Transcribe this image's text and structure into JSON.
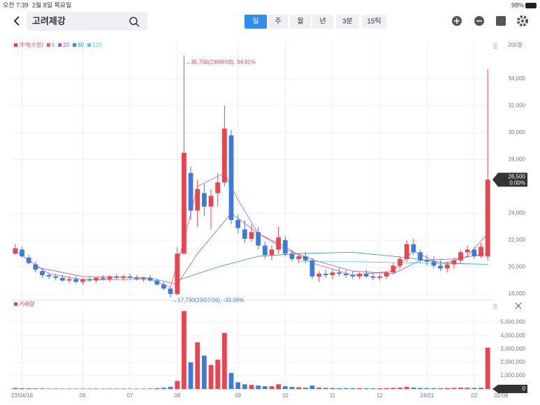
{
  "status_bar": {
    "time": "오전 7:39",
    "date": "2월 8일 목요일",
    "battery": "98%"
  },
  "toolbar": {
    "search": "고려제강",
    "periods": [
      "일",
      "주",
      "월",
      "년",
      "3분",
      "15틱"
    ]
  },
  "chart_data": [
    {
      "type": "candlestick",
      "legend": [
        "가격(수정)",
        "5",
        "20",
        "60",
        "120"
      ],
      "count_label": "200봉",
      "max_label": "→35,750(23/08/03), 34.91%",
      "min_label": "→17,730(23/07/26), -33.09%",
      "last_price_label": "26,500",
      "last_change": "0.00%",
      "up_color": "#e8454f",
      "down_color": "#3c7bd8",
      "ylim": [
        17530,
        36750
      ],
      "yticks": [
        {
          "value": 18000,
          "label": "18,000"
        },
        {
          "value": 20000,
          "label": "20,000"
        },
        {
          "value": 22000,
          "label": "22,000"
        },
        {
          "value": 24000,
          "label": "24,000"
        },
        {
          "value": 28000,
          "label": "28,000"
        },
        {
          "value": 30000,
          "label": "30,000"
        },
        {
          "value": 32000,
          "label": "32,000"
        },
        {
          "value": 34000,
          "label": "34,000"
        }
      ],
      "candles": [
        [
          21000,
          21700,
          20900,
          21400
        ],
        [
          21300,
          21500,
          20700,
          20800
        ],
        [
          20700,
          20900,
          20200,
          20300
        ],
        [
          20200,
          20400,
          19600,
          19800
        ],
        [
          19700,
          19900,
          19200,
          19400
        ],
        [
          19400,
          19600,
          19100,
          19300
        ],
        [
          19300,
          19500,
          19000,
          19200
        ],
        [
          19200,
          19400,
          18900,
          19000
        ],
        [
          19000,
          19300,
          18800,
          19100
        ],
        [
          19100,
          19300,
          18800,
          18900
        ],
        [
          18900,
          19200,
          18700,
          19100
        ],
        [
          19100,
          19300,
          18900,
          19000
        ],
        [
          19000,
          19300,
          18800,
          19200
        ],
        [
          19200,
          19400,
          19000,
          19100
        ],
        [
          19100,
          19400,
          18900,
          19300
        ],
        [
          19300,
          19500,
          19100,
          19200
        ],
        [
          19200,
          19400,
          19000,
          19300
        ],
        [
          19300,
          19500,
          19100,
          19200
        ],
        [
          19200,
          19400,
          19000,
          19100
        ],
        [
          19100,
          19300,
          18900,
          19200
        ],
        [
          19200,
          19400,
          18900,
          19000
        ],
        [
          19000,
          19100,
          18600,
          18700
        ],
        [
          18700,
          18900,
          18300,
          18400
        ],
        [
          18400,
          18500,
          17730,
          18000
        ],
        [
          18000,
          21500,
          17900,
          21000
        ],
        [
          21000,
          35750,
          21000,
          28500
        ],
        [
          27000,
          27500,
          23500,
          24200
        ],
        [
          24200,
          26500,
          23000,
          25800
        ],
        [
          25500,
          26200,
          23800,
          24500
        ],
        [
          24500,
          25800,
          22800,
          25300
        ],
        [
          25500,
          27000,
          24500,
          26300
        ],
        [
          26300,
          32000,
          26000,
          30300
        ],
        [
          29800,
          30200,
          23200,
          23500
        ],
        [
          23500,
          23900,
          22500,
          22900
        ],
        [
          22800,
          23500,
          21800,
          22100
        ],
        [
          22100,
          23200,
          21900,
          22600
        ],
        [
          22600,
          23000,
          21300,
          21600
        ],
        [
          21600,
          21900,
          20600,
          20900
        ],
        [
          20900,
          21600,
          20500,
          21300
        ],
        [
          21300,
          23000,
          21000,
          22200
        ],
        [
          22000,
          22300,
          20800,
          21000
        ],
        [
          21000,
          21300,
          20400,
          20600
        ],
        [
          20600,
          21000,
          20300,
          20800
        ],
        [
          20800,
          21100,
          20300,
          20500
        ],
        [
          20500,
          20700,
          19100,
          19300
        ],
        [
          19300,
          19700,
          18900,
          19500
        ],
        [
          19500,
          19800,
          19200,
          19400
        ],
        [
          19400,
          19800,
          19100,
          19600
        ],
        [
          19600,
          19900,
          19300,
          19500
        ],
        [
          19500,
          19800,
          19200,
          19400
        ],
        [
          19400,
          19700,
          19100,
          19300
        ],
        [
          19300,
          19600,
          19100,
          19500
        ],
        [
          19500,
          19800,
          19200,
          19300
        ],
        [
          19300,
          19500,
          19000,
          19200
        ],
        [
          19200,
          19500,
          19000,
          19300
        ],
        [
          19300,
          19700,
          19100,
          19600
        ],
        [
          19600,
          20300,
          19500,
          20100
        ],
        [
          20100,
          20800,
          19900,
          20600
        ],
        [
          20600,
          22000,
          20400,
          21700
        ],
        [
          21700,
          22100,
          20900,
          21100
        ],
        [
          21100,
          21300,
          20300,
          20500
        ],
        [
          20500,
          20900,
          20100,
          20400
        ],
        [
          20400,
          20800,
          19900,
          20100
        ],
        [
          20100,
          20500,
          19700,
          19900
        ],
        [
          19900,
          20400,
          19600,
          20200
        ],
        [
          20200,
          20700,
          19900,
          20500
        ],
        [
          20500,
          21300,
          20300,
          21100
        ],
        [
          21100,
          21600,
          20700,
          21300
        ],
        [
          21300,
          21500,
          20600,
          20800
        ],
        [
          20800,
          21800,
          20700,
          21500
        ],
        [
          20800,
          34700,
          20500,
          26500
        ]
      ],
      "series": [
        {
          "name": "5",
          "color": "#e05a7a",
          "x": [
            0,
            5,
            10,
            20,
            23,
            25,
            27,
            31,
            33,
            36,
            40,
            44,
            50,
            56,
            59,
            63,
            67,
            70
          ],
          "values": [
            21200,
            19500,
            19050,
            19100,
            18500,
            22000,
            26000,
            27000,
            25000,
            22500,
            21500,
            20300,
            19400,
            19700,
            21200,
            20200,
            20800,
            22500
          ]
        },
        {
          "name": "20",
          "color": "#9b59d0",
          "x": [
            3,
            10,
            20,
            24,
            27,
            32,
            36,
            40,
            45,
            50,
            56,
            60,
            65,
            70
          ],
          "values": [
            20000,
            19300,
            19200,
            18700,
            21000,
            24000,
            22500,
            21300,
            20400,
            19700,
            19500,
            20500,
            20600,
            21000
          ]
        },
        {
          "name": "60",
          "color": "#2a9d8f",
          "x": [
            24,
            30,
            36,
            42,
            50,
            58,
            64,
            70
          ],
          "values": [
            19000,
            20000,
            20800,
            21000,
            21100,
            20700,
            20300,
            20200
          ]
        },
        {
          "name": "120",
          "color": "#5bc8d8",
          "x": [
            42,
            50,
            60,
            70
          ],
          "values": [
            20400,
            20400,
            20300,
            20200
          ]
        }
      ]
    },
    {
      "type": "volume",
      "legend": "거래량",
      "last_value": 0,
      "ylim": [
        0,
        5870000
      ],
      "yticks": [
        {
          "value": 1000000,
          "label": "1,000,000"
        },
        {
          "value": 2000000,
          "label": "2,000,000"
        },
        {
          "value": 3000000,
          "label": "3,000,000"
        },
        {
          "value": 4000000,
          "label": "4,000,000"
        },
        {
          "value": 5000000,
          "label": "5,000,000"
        }
      ],
      "xticks": [
        {
          "value": 1,
          "label": "23/04/18"
        },
        {
          "value": 10,
          "label": "06"
        },
        {
          "value": 17,
          "label": "07"
        },
        {
          "value": 24,
          "label": "08"
        },
        {
          "value": 33,
          "label": "09"
        },
        {
          "value": 40,
          "label": "10"
        },
        {
          "value": 47,
          "label": "11"
        },
        {
          "value": 54,
          "label": "12"
        },
        {
          "value": 61,
          "label": "24/01"
        },
        {
          "value": 68,
          "label": "02"
        },
        {
          "value": 72,
          "label": "02/08"
        }
      ],
      "values": [
        80000,
        60000,
        50000,
        40000,
        40000,
        30000,
        30000,
        30000,
        30000,
        30000,
        30000,
        30000,
        30000,
        30000,
        30000,
        30000,
        30000,
        30000,
        30000,
        30000,
        40000,
        60000,
        90000,
        150000,
        600000,
        5850000,
        2000000,
        3500000,
        2500000,
        1800000,
        2200000,
        4200000,
        1200000,
        500000,
        350000,
        300000,
        250000,
        200000,
        200000,
        350000,
        200000,
        150000,
        120000,
        100000,
        250000,
        100000,
        80000,
        70000,
        60000,
        60000,
        60000,
        60000,
        50000,
        50000,
        50000,
        60000,
        80000,
        100000,
        150000,
        100000,
        80000,
        70000,
        60000,
        60000,
        70000,
        80000,
        100000,
        90000,
        80000,
        90000,
        3100000
      ]
    }
  ]
}
